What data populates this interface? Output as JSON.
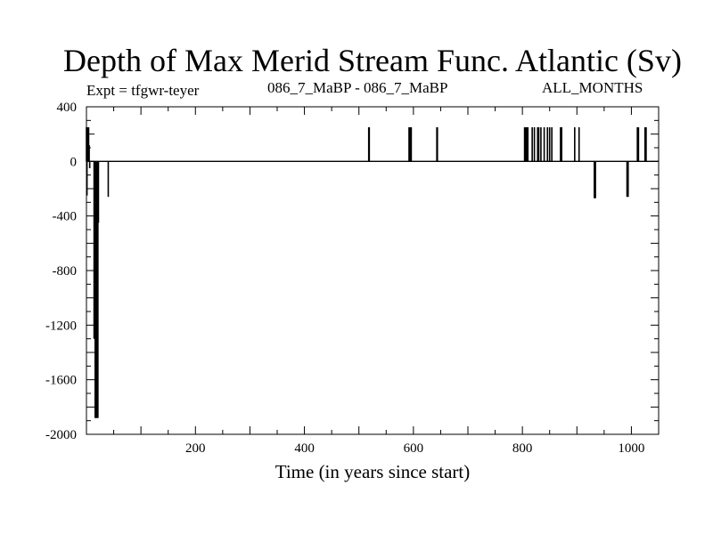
{
  "chart_data": {
    "type": "line",
    "title": "Depth of Max Merid Stream Func. Atlantic (Sv)",
    "annotations": {
      "left": "Expt = tfgwr-teyer",
      "center": "086_7_MaBP - 086_7_MaBP",
      "right": "ALL_MONTHS"
    },
    "xlabel": "Time (in years since start)",
    "ylabel": "",
    "xlim": [
      0,
      1050
    ],
    "ylim": [
      -2000,
      400
    ],
    "x_ticks": [
      200,
      400,
      600,
      800,
      1000
    ],
    "y_ticks": [
      400,
      0,
      -400,
      -800,
      -1200,
      -1600,
      -2000
    ],
    "grid": false,
    "series": [
      {
        "color": "#000000",
        "spikes": [
          [
            0,
            250
          ],
          [
            1,
            -250
          ],
          [
            2,
            250
          ],
          [
            3,
            180
          ],
          [
            4,
            250
          ],
          [
            5,
            120
          ],
          [
            6,
            -50
          ],
          [
            14,
            -1300
          ],
          [
            16,
            -1880
          ],
          [
            17,
            -1880
          ],
          [
            18,
            -1880
          ],
          [
            19,
            -1880
          ],
          [
            20,
            -1880
          ],
          [
            21,
            -1880
          ],
          [
            22,
            -450
          ],
          [
            40,
            -260
          ],
          [
            518,
            250
          ],
          [
            519,
            250
          ],
          [
            592,
            250
          ],
          [
            594,
            250
          ],
          [
            596,
            250
          ],
          [
            643,
            250
          ],
          [
            644,
            250
          ],
          [
            804,
            250
          ],
          [
            806,
            250
          ],
          [
            808,
            250
          ],
          [
            810,
            250
          ],
          [
            818,
            250
          ],
          [
            822,
            250
          ],
          [
            828,
            250
          ],
          [
            830,
            250
          ],
          [
            834,
            250
          ],
          [
            840,
            250
          ],
          [
            846,
            250
          ],
          [
            850,
            250
          ],
          [
            854,
            250
          ],
          [
            870,
            250
          ],
          [
            872,
            250
          ],
          [
            896,
            250
          ],
          [
            904,
            250
          ],
          [
            932,
            -270
          ],
          [
            934,
            -270
          ],
          [
            992,
            -260
          ],
          [
            994,
            -260
          ],
          [
            1011,
            250
          ],
          [
            1013,
            250
          ],
          [
            1025,
            250
          ],
          [
            1027,
            250
          ]
        ]
      }
    ]
  }
}
